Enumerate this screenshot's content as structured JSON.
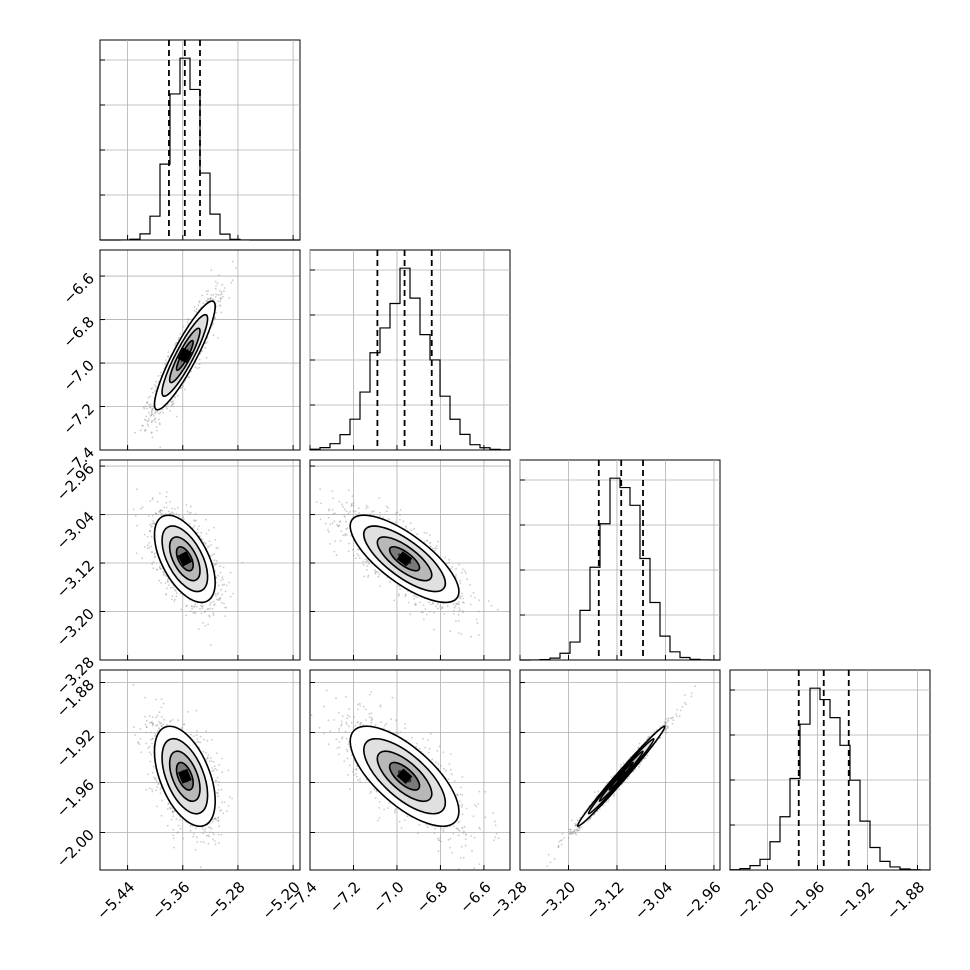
{
  "chart_data": {
    "type": "corner",
    "grid": true,
    "variables": [
      {
        "ticks": [
          -5.44,
          -5.36,
          -5.28,
          -5.2
        ],
        "tick_labels": [
          "−5.44",
          "−5.36",
          "−5.28",
          "−5.20"
        ],
        "range": [
          -5.48,
          -5.19
        ],
        "quantiles": [
          -5.38,
          -5.357,
          -5.335
        ],
        "median": -5.357,
        "sigma": 0.022
      },
      {
        "ticks": [
          -7.4,
          -7.2,
          -7.0,
          -6.8,
          -6.6
        ],
        "tick_labels": [
          "−7.4",
          "−7.2",
          "−7.0",
          "−6.8",
          "−6.6"
        ],
        "range": [
          -7.4,
          -6.48
        ],
        "quantiles": [
          -7.09,
          -6.965,
          -6.84
        ],
        "median": -6.965,
        "sigma": 0.125
      },
      {
        "ticks": [
          -3.28,
          -3.2,
          -3.12,
          -3.04,
          -2.96
        ],
        "tick_labels": [
          "−3.28",
          "−3.20",
          "−3.12",
          "−3.04",
          "−2.96"
        ],
        "range": [
          -3.28,
          -2.95
        ],
        "quantiles": [
          -3.15,
          -3.113,
          -3.077
        ],
        "median": -3.113,
        "sigma": 0.036
      },
      {
        "ticks": [
          -2.0,
          -1.96,
          -1.92,
          -1.88
        ],
        "tick_labels": [
          "−2.00",
          "−1.96",
          "−1.92",
          "−1.88"
        ],
        "range": [
          -2.03,
          -1.87
        ],
        "quantiles": [
          -1.975,
          -1.955,
          -1.935
        ],
        "median": -1.955,
        "sigma": 0.02
      }
    ],
    "correlations": [
      {
        "pair": [
          1,
          0
        ],
        "rho": 0.9
      },
      {
        "pair": [
          2,
          0
        ],
        "rho": -0.55
      },
      {
        "pair": [
          2,
          1
        ],
        "rho": -0.75
      },
      {
        "pair": [
          3,
          0
        ],
        "rho": -0.5
      },
      {
        "pair": [
          3,
          1
        ],
        "rho": -0.7
      },
      {
        "pair": [
          3,
          2
        ],
        "rho": 0.99
      }
    ]
  }
}
